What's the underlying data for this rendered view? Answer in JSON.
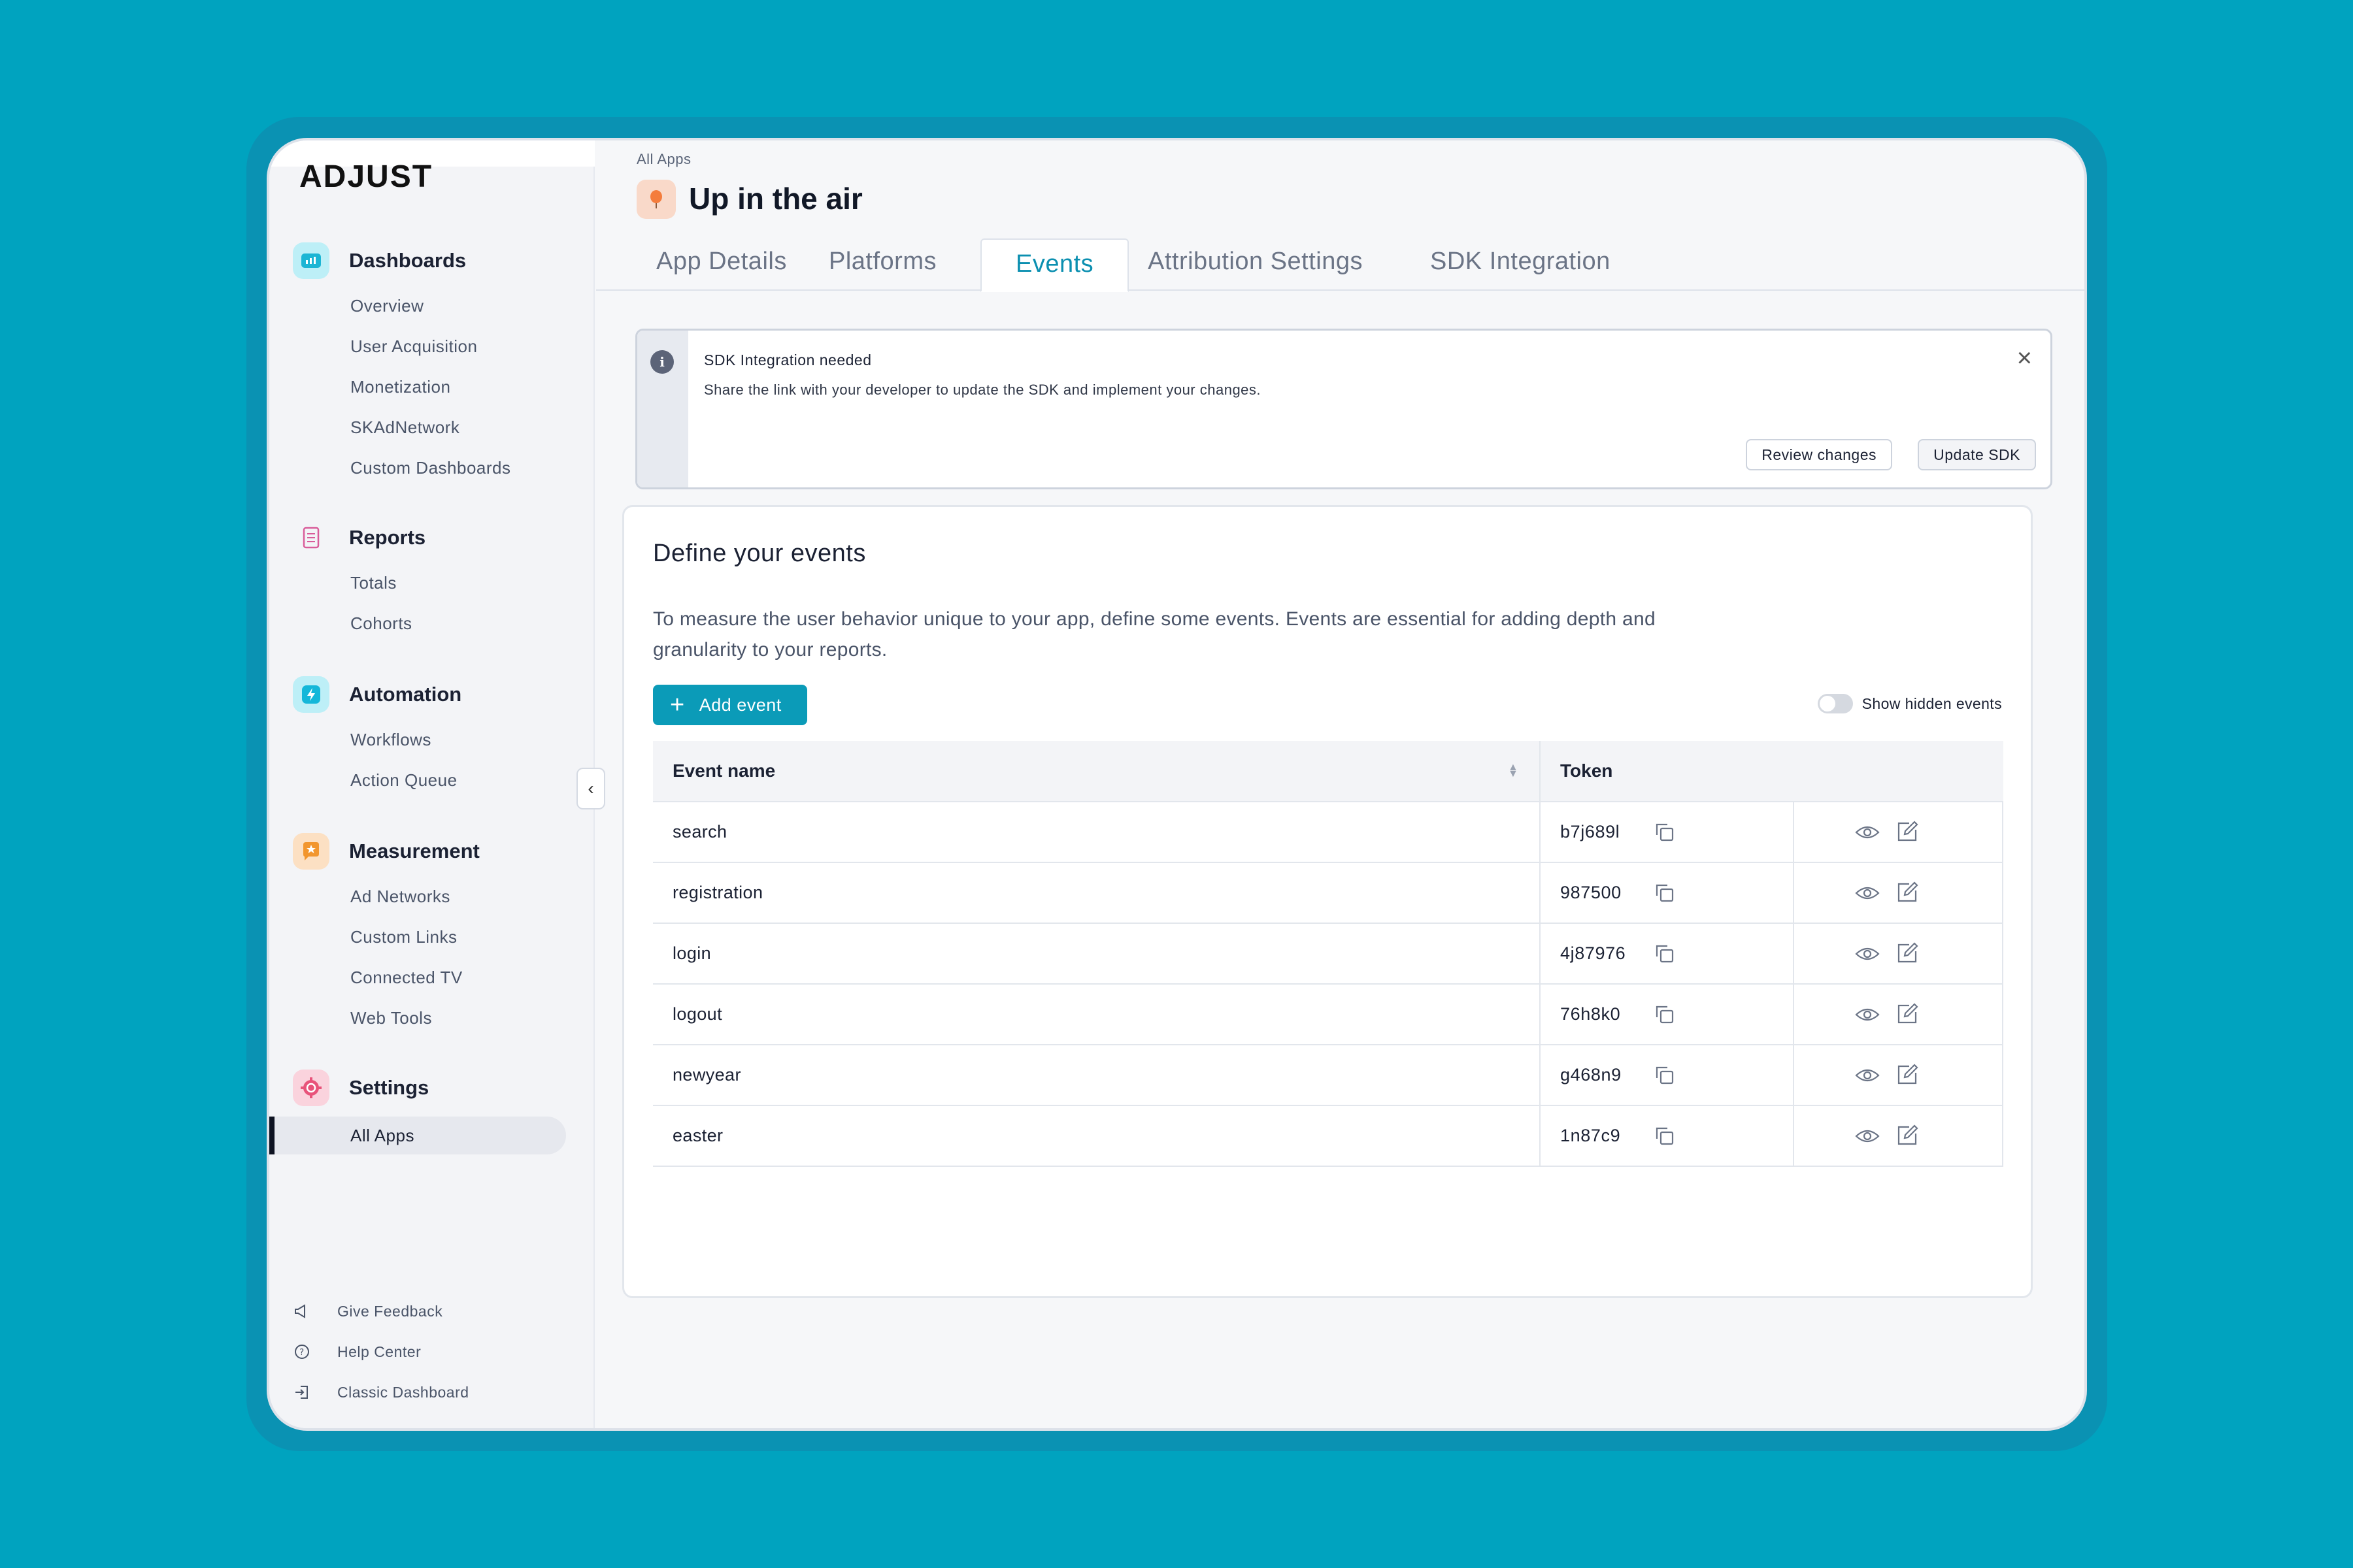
{
  "brand": {
    "logo_text": "ADJUST"
  },
  "sidebar": {
    "sections": [
      {
        "title": "Dashboards",
        "icon": "dashboard-icon",
        "color": "#1CB5D4",
        "items": [
          "Overview",
          "User Acquisition",
          "Monetization",
          "SKAdNetwork",
          "Custom Dashboards"
        ]
      },
      {
        "title": "Reports",
        "icon": "report-icon",
        "color": "#D95C9A",
        "items": [
          "Totals",
          "Cohorts"
        ]
      },
      {
        "title": "Automation",
        "icon": "lightning-icon",
        "color": "#14B7D9",
        "items": [
          "Workflows",
          "Action Queue"
        ]
      },
      {
        "title": "Measurement",
        "icon": "star-badge-icon",
        "color": "#F2962E",
        "items": [
          "Ad Networks",
          "Custom Links",
          "Connected TV",
          "Web Tools"
        ]
      },
      {
        "title": "Settings",
        "icon": "gear-icon",
        "color": "#E8537A",
        "items": [
          "All Apps"
        ]
      }
    ],
    "active_item": "All Apps",
    "footer": [
      {
        "label": "Give Feedback",
        "icon": "megaphone-icon"
      },
      {
        "label": "Help Center",
        "icon": "help-icon"
      },
      {
        "label": "Classic Dashboard",
        "icon": "exit-icon"
      }
    ]
  },
  "header": {
    "breadcrumb": "All Apps",
    "app_title": "Up in the air",
    "app_icon": "balloon-icon"
  },
  "tabs": [
    {
      "label": "App Details"
    },
    {
      "label": "Platforms"
    },
    {
      "label": "Events",
      "active": true
    },
    {
      "label": "Attribution Settings"
    },
    {
      "label": "SDK Integration"
    }
  ],
  "alert": {
    "title": "SDK Integration needed",
    "text": "Share the link with your developer to update the SDK and implement your changes.",
    "review_label": "Review changes",
    "update_label": "Update SDK"
  },
  "events": {
    "title": "Define your events",
    "description": "To measure the user behavior unique to your app, define some events. Events are essential for adding depth and granularity to your reports.",
    "add_label": "Add event",
    "toggle_label": "Show hidden events",
    "columns": {
      "name": "Event name",
      "token": "Token"
    },
    "rows": [
      {
        "name": "search",
        "token": "b7j689l"
      },
      {
        "name": "registration",
        "token": "987500"
      },
      {
        "name": "login",
        "token": "4j87976"
      },
      {
        "name": "logout",
        "token": "76h8k0"
      },
      {
        "name": "newyear",
        "token": "g468n9"
      },
      {
        "name": "easter",
        "token": "1n87c9"
      }
    ]
  },
  "colors": {
    "accent": "#0B9BB8",
    "background": "#00A3BF",
    "frame": "#0A92B3"
  }
}
